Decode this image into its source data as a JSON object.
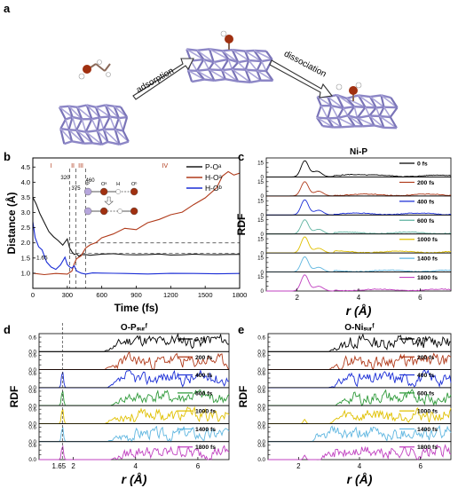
{
  "figure": {
    "panel_labels": [
      "a",
      "b",
      "c",
      "d",
      "e"
    ]
  },
  "panel_a": {
    "arrow_labels": [
      "adsorption",
      "dissociation"
    ]
  },
  "chart_data": [
    {
      "id": "b",
      "type": "line",
      "xlabel": "Time (fs)",
      "ylabel": "Distance (Å)",
      "xlim": [
        0,
        1800
      ],
      "ylim": [
        0.5,
        4.8
      ],
      "xticks": [
        0,
        300,
        600,
        900,
        1200,
        1500,
        1800
      ],
      "yticks": [
        1.0,
        1.5,
        2.0,
        2.5,
        3.0,
        3.5,
        4.0,
        4.5
      ],
      "ytick_labels": [
        "1.0",
        "1.5",
        "2.0",
        "2.5",
        "3.0",
        "3.5",
        "4.0",
        "4.5"
      ],
      "legend": {
        "placement": "top-right",
        "entries": [
          "P-Oᵃ",
          "H-Oᵃ",
          "H-Oᵇ"
        ]
      },
      "series": [
        {
          "name": "P-Oᵃ",
          "color": "#1a1a1a",
          "x": [
            0,
            30,
            60,
            100,
            140,
            180,
            220,
            260,
            300,
            320,
            340,
            360,
            380,
            400,
            420,
            460,
            500,
            600,
            700,
            800,
            900,
            1000,
            1100,
            1200,
            1300,
            1400,
            1500,
            1600,
            1700,
            1800
          ],
          "y": [
            3.5,
            3.3,
            3.0,
            2.7,
            2.4,
            2.2,
            2.05,
            1.95,
            2.1,
            1.85,
            1.7,
            1.6,
            1.65,
            1.58,
            1.62,
            1.6,
            1.62,
            1.6,
            1.63,
            1.6,
            1.62,
            1.6,
            1.63,
            1.6,
            1.62,
            1.6,
            1.63,
            1.6,
            1.62,
            1.62
          ]
        },
        {
          "name": "H-Oᵃ",
          "color": "#b03a1a",
          "x": [
            0,
            100,
            200,
            300,
            340,
            360,
            380,
            420,
            460,
            500,
            550,
            600,
            700,
            800,
            900,
            1000,
            1100,
            1200,
            1300,
            1400,
            1500,
            1600,
            1650,
            1700,
            1750,
            1800
          ],
          "y": [
            1.0,
            0.98,
            1.02,
            1.0,
            1.1,
            1.3,
            1.45,
            1.6,
            1.8,
            1.95,
            2.0,
            2.15,
            2.3,
            2.5,
            2.45,
            2.65,
            2.8,
            2.9,
            3.0,
            3.25,
            3.5,
            3.8,
            4.2,
            4.35,
            4.25,
            4.3
          ]
        },
        {
          "name": "H-Oᵇ",
          "color": "#1a2dd6",
          "x": [
            0,
            20,
            50,
            80,
            120,
            160,
            200,
            240,
            280,
            300,
            320,
            340,
            360,
            380,
            400,
            420,
            460,
            520,
            600,
            800,
            1000,
            1200,
            1400,
            1600,
            1800
          ],
          "y": [
            2.7,
            2.2,
            1.9,
            1.8,
            1.4,
            1.2,
            1.1,
            1.3,
            1.5,
            1.3,
            1.2,
            1.15,
            1.25,
            1.1,
            1.05,
            0.99,
            1.0,
            0.98,
            0.99,
            0.98,
            0.99,
            0.98,
            0.99,
            0.98,
            0.99
          ]
        }
      ],
      "reference_lines": {
        "vertical_x": [
          320,
          375,
          460
        ],
        "horizontal_y": [
          1.65,
          2.0
        ]
      },
      "annotations": {
        "phases": [
          "I",
          "II",
          "III",
          "IV"
        ],
        "times": [
          "320",
          "375",
          "460"
        ],
        "value_label": "1.65",
        "schematic_atoms": [
          "P",
          "Oᵃ",
          "H",
          "Oᵇ"
        ]
      }
    },
    {
      "id": "c",
      "type": "line",
      "title": "Ni-P",
      "xlabel": "r (Å)",
      "ylabel": "RDF",
      "xlim": [
        1.0,
        7.0
      ],
      "xticks": [
        2,
        4,
        6
      ],
      "yticks": [
        0,
        5,
        10,
        15
      ],
      "ylim_per_panel": [
        0,
        20
      ],
      "series": [
        {
          "name": "0 fs",
          "color": "#000000",
          "peaks": [
            [
              2.25,
              17,
              0.12
            ],
            [
              2.65,
              6,
              0.15
            ],
            [
              3.7,
              2,
              0.3
            ]
          ]
        },
        {
          "name": "200 fs",
          "color": "#b03a1a",
          "peaks": [
            [
              2.25,
              15,
              0.12
            ],
            [
              2.7,
              5,
              0.15
            ]
          ]
        },
        {
          "name": "400 fs",
          "color": "#1a2dd6",
          "peaks": [
            [
              2.25,
              16,
              0.12
            ],
            [
              2.7,
              5,
              0.15
            ]
          ]
        },
        {
          "name": "600 fs",
          "color": "#5fb3a0",
          "peaks": [
            [
              2.25,
              15,
              0.12
            ],
            [
              2.7,
              5,
              0.15
            ]
          ]
        },
        {
          "name": "1000 fs",
          "color": "#e0c000",
          "peaks": [
            [
              2.25,
              17,
              0.12
            ],
            [
              2.7,
              5,
              0.15
            ]
          ]
        },
        {
          "name": "1400 fs",
          "color": "#5fb6e0",
          "peaks": [
            [
              2.25,
              16,
              0.12
            ],
            [
              2.7,
              5,
              0.15
            ]
          ]
        },
        {
          "name": "1800 fs",
          "color": "#c040c0",
          "peaks": [
            [
              2.25,
              17,
              0.12
            ],
            [
              2.7,
              5,
              0.15
            ]
          ]
        }
      ]
    },
    {
      "id": "d",
      "type": "line",
      "title": "O-Pₛᵤᵣᶠ",
      "xlabel": "r (Å)",
      "ylabel": "RDF",
      "xlim": [
        0.9,
        7.0
      ],
      "xticks": [
        2,
        4,
        6
      ],
      "extra_tick_label": "1.65",
      "yticks": [
        0.0,
        0.2,
        0.4,
        0.6
      ],
      "ytick_labels": [
        "0.0",
        "0.2",
        "0.4",
        "0.6"
      ],
      "ylim_per_panel": [
        0,
        0.75
      ],
      "reference_x": 1.65,
      "series": [
        {
          "name": "0 fs",
          "color": "#000000",
          "onset": 3.0,
          "level": 0.45,
          "seed": 11,
          "spike": null
        },
        {
          "name": "200 fs",
          "color": "#b03a1a",
          "onset": 3.0,
          "level": 0.35,
          "seed": 23,
          "spike": null
        },
        {
          "name": "400 fs",
          "color": "#1a2dd6",
          "onset": 3.1,
          "level": 0.4,
          "seed": 37,
          "spike": 0.7
        },
        {
          "name": "600 fs",
          "color": "#2f9a3a",
          "onset": 3.2,
          "level": 0.35,
          "seed": 41,
          "spike": 0.65
        },
        {
          "name": "1000 fs",
          "color": "#e0c000",
          "onset": 3.0,
          "level": 0.35,
          "seed": 53,
          "spike": 0.65
        },
        {
          "name": "1400 fs",
          "color": "#5fb6e0",
          "onset": 3.1,
          "level": 0.33,
          "seed": 67,
          "spike": 0.62
        },
        {
          "name": "1800 fs",
          "color": "#c040c0",
          "onset": 3.2,
          "level": 0.3,
          "seed": 79,
          "spike": 0.6
        }
      ]
    },
    {
      "id": "e",
      "type": "line",
      "title": "O-Niₛᵤᵣᶠ",
      "xlabel": "r (Å)",
      "ylabel": "RDF",
      "xlim": [
        1.0,
        7.0
      ],
      "xticks": [
        2,
        4,
        6
      ],
      "yticks": [
        0.0,
        0.2,
        0.4,
        0.6
      ],
      "ytick_labels": [
        "0.0",
        "0.2",
        "0.4",
        "0.6"
      ],
      "ylim_per_panel": [
        0,
        0.75
      ],
      "series": [
        {
          "name": "0 fs",
          "color": "#000000",
          "onset": 3.0,
          "level": 0.4,
          "seed": 13
        },
        {
          "name": "200 fs",
          "color": "#b03a1a",
          "onset": 3.0,
          "level": 0.35,
          "seed": 29
        },
        {
          "name": "400 fs",
          "color": "#1a2dd6",
          "onset": 3.0,
          "level": 0.38,
          "seed": 31
        },
        {
          "name": "600 fs",
          "color": "#2f9a3a",
          "onset": 3.2,
          "level": 0.33,
          "seed": 43
        },
        {
          "name": "1000 fs",
          "color": "#e0c000",
          "onset": 3.0,
          "level": 0.35,
          "seed": 59,
          "bump_x": 2.2
        },
        {
          "name": "1400 fs",
          "color": "#5fb6e0",
          "onset": 2.4,
          "level": 0.32,
          "seed": 61,
          "bump_x": 2.6
        },
        {
          "name": "1800 fs",
          "color": "#c040c0",
          "onset": 2.6,
          "level": 0.3,
          "seed": 71,
          "bump_x": 2.2
        }
      ]
    }
  ]
}
